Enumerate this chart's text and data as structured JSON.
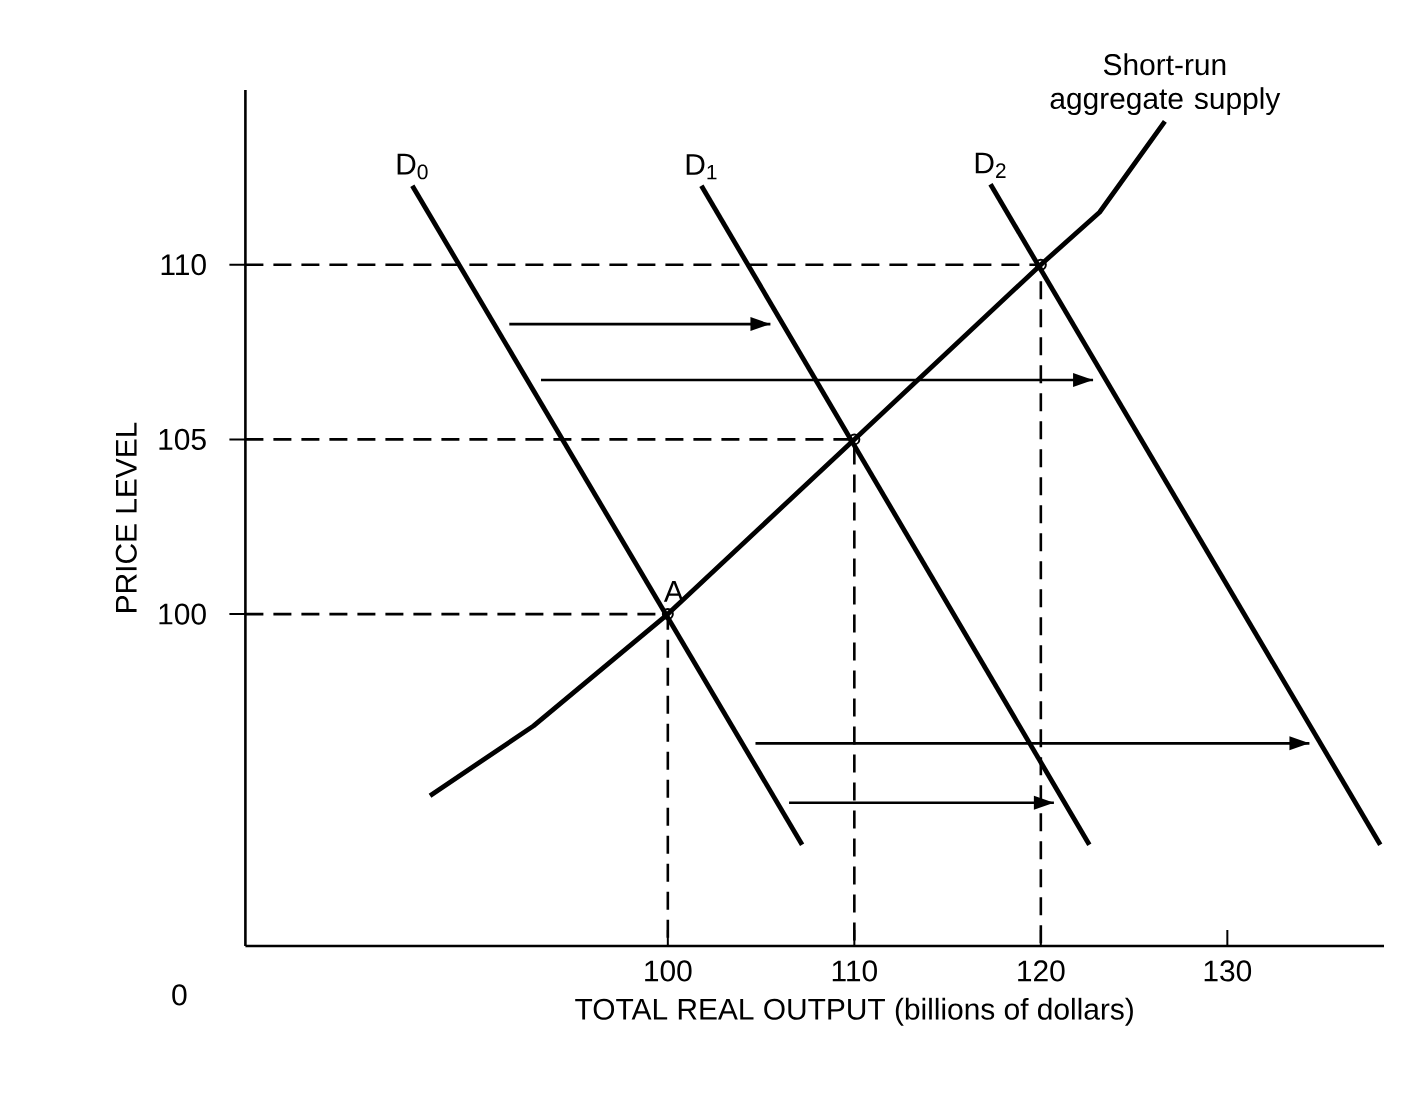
{
  "chart_data": {
    "type": "line",
    "xlabel": "TOTAL REAL OUTPUT (billions of dollars)",
    "ylabel": "PRICE LEVEL",
    "xlim": [
      77.35,
      138.4
    ],
    "ylim": [
      90.5,
      115
    ],
    "xticks": [
      100,
      110,
      120,
      130
    ],
    "yticks": [
      100,
      105,
      110
    ],
    "series": [
      {
        "name": "D$_{0}$",
        "color": "#000000",
        "x": [
          86.3,
          107.2
        ],
        "values": [
          112.26,
          93.4
        ]
      },
      {
        "name": "D$_{1}$",
        "color": "#000000",
        "x": [
          101.8,
          122.6
        ],
        "values": [
          112.26,
          93.4
        ]
      },
      {
        "name": "D$_{2}$",
        "color": "#000000",
        "x": [
          117.3,
          138.2
        ],
        "values": [
          112.3,
          93.4
        ]
      },
      {
        "name": "Short-run aggregate supply",
        "color": "#000000",
        "x": [
          87.25,
          92.8,
          100,
          110,
          120,
          123.15,
          126.65
        ],
        "values": [
          94.8,
          96.8,
          100,
          105,
          110,
          111.5,
          114.1
        ]
      },
      {
        "color": "#000000",
        "line_style": "dashed",
        "x": [
          77.35,
          100,
          100
        ],
        "values": [
          100,
          100,
          90.5
        ]
      },
      {
        "color": "#000000",
        "line_style": "dashed",
        "x": [
          77.35,
          110,
          110
        ],
        "values": [
          105,
          105,
          90.5
        ]
      },
      {
        "color": "#000000",
        "line_style": "dashed",
        "x": [
          77.35,
          120,
          120
        ],
        "values": [
          110,
          110,
          90.5
        ]
      },
      {
        "color": "#000000",
        "line_style": "solid",
        "x": [
          91.5,
          105.5
        ],
        "values": [
          108.3,
          108.3
        ]
      },
      {
        "color": "#000000",
        "line_style": "solid",
        "x": [
          93.2,
          122.8
        ],
        "values": [
          106.7,
          106.7
        ]
      },
      {
        "color": "#000000",
        "line_style": "solid",
        "x": [
          104.7,
          134.4
        ],
        "values": [
          96.3,
          96.3
        ]
      },
      {
        "color": "#000000",
        "line_style": "solid",
        "x": [
          106.5,
          120.7
        ],
        "values": [
          94.6,
          94.6
        ]
      },
      {
        "type": "scatter",
        "color": "#000000",
        "marker": "circle",
        "x": [
          100,
          110,
          120
        ],
        "values": [
          100,
          105,
          110
        ]
      }
    ],
    "annotations": [
      "0",
      {
        "text": "A",
        "x": 100,
        "y": 100
      }
    ]
  }
}
